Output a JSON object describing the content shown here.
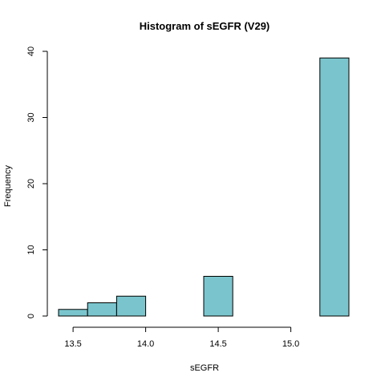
{
  "chart_data": {
    "type": "bar",
    "title": "Histogram of sEGFR (V29)",
    "xlabel": "sEGFR",
    "ylabel": "Frequency",
    "bar_color": "#7AC5CD",
    "bins": [
      {
        "x0": 13.4,
        "x1": 13.6,
        "count": 1
      },
      {
        "x0": 13.6,
        "x1": 13.8,
        "count": 2
      },
      {
        "x0": 13.8,
        "x1": 14.0,
        "count": 3
      },
      {
        "x0": 14.0,
        "x1": 14.2,
        "count": 0
      },
      {
        "x0": 14.2,
        "x1": 14.4,
        "count": 0
      },
      {
        "x0": 14.4,
        "x1": 14.6,
        "count": 6
      },
      {
        "x0": 14.6,
        "x1": 14.8,
        "count": 0
      },
      {
        "x0": 14.8,
        "x1": 15.0,
        "count": 0
      },
      {
        "x0": 15.0,
        "x1": 15.2,
        "count": 0
      },
      {
        "x0": 15.2,
        "x1": 15.4,
        "count": 39
      }
    ],
    "x_ticks": [
      "13.5",
      "14.0",
      "14.5",
      "15.0"
    ],
    "y_ticks": [
      "0",
      "10",
      "20",
      "30",
      "40"
    ],
    "xlim": [
      13.4,
      15.4
    ],
    "ylim": [
      0,
      40
    ],
    "grid": false
  }
}
